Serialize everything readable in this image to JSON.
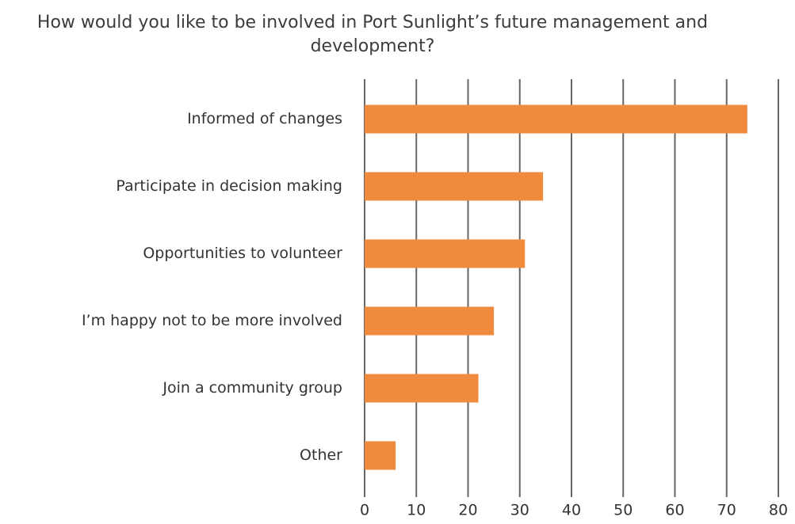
{
  "chart_data": {
    "type": "bar",
    "orientation": "horizontal",
    "title": "How would you like to be involved in Port Sunlight’s future management and development?",
    "categories": [
      "Informed of changes",
      "Participate in decision making",
      "Opportunities to volunteer",
      "I’m happy not to be more involved",
      "Join a community group",
      "Other"
    ],
    "values": [
      74,
      34.5,
      31,
      25,
      22,
      6
    ],
    "color": "#f08a3c",
    "xlim": [
      0,
      80
    ],
    "xticks": [
      0,
      10,
      20,
      30,
      40,
      50,
      60,
      70,
      80
    ],
    "grid": true
  }
}
